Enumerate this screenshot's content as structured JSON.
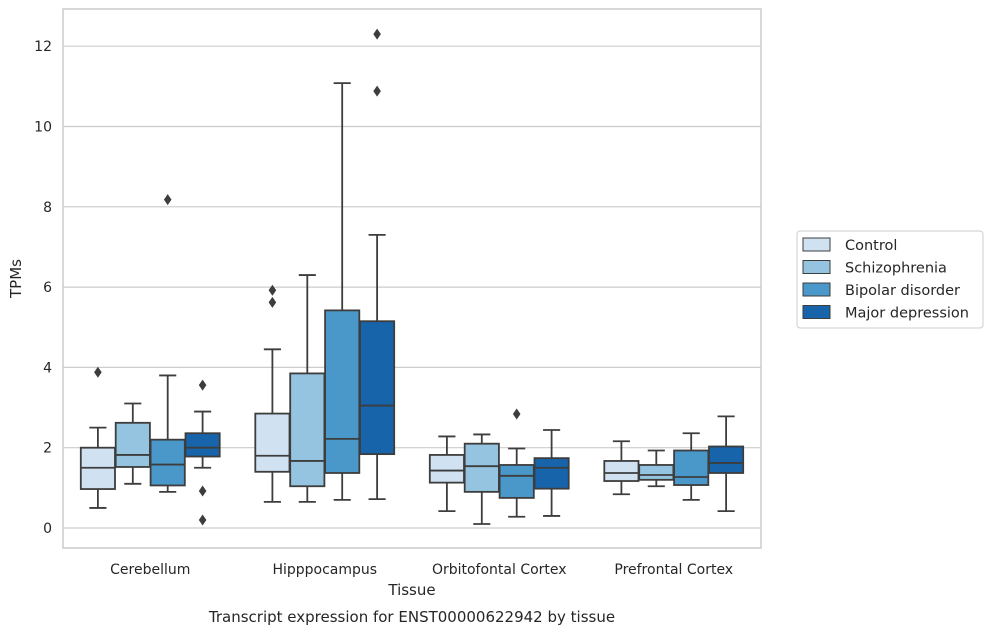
{
  "chart_data": {
    "type": "box",
    "title": "Transcript expression for ENST00000622942 by tissue",
    "xlabel": "Tissue",
    "ylabel": "TPMs",
    "ylim": [
      -0.5,
      12.9
    ],
    "yticks": [
      0,
      2,
      4,
      6,
      8,
      10,
      12
    ],
    "categories": [
      "Cerebellum",
      "Hipppocampus",
      "Orbitofontal Cortex",
      "Prefrontal Cortex"
    ],
    "grid": "horizontal",
    "legend_position": "right",
    "series": [
      {
        "name": "Control",
        "color": "#d0e1f2",
        "boxes": [
          {
            "whislo": 0.5,
            "q1": 0.97,
            "med": 1.5,
            "q3": 2.0,
            "whishi": 2.5,
            "fliers": [
              3.88
            ]
          },
          {
            "whislo": 0.65,
            "q1": 1.4,
            "med": 1.8,
            "q3": 2.85,
            "whishi": 4.45,
            "fliers": [
              5.62,
              5.92
            ]
          },
          {
            "whislo": 0.42,
            "q1": 1.13,
            "med": 1.43,
            "q3": 1.82,
            "whishi": 2.28,
            "fliers": []
          },
          {
            "whislo": 0.84,
            "q1": 1.17,
            "med": 1.37,
            "q3": 1.67,
            "whishi": 2.16,
            "fliers": []
          }
        ]
      },
      {
        "name": "Schizophrenia",
        "color": "#94c4df",
        "boxes": [
          {
            "whislo": 1.1,
            "q1": 1.52,
            "med": 1.82,
            "q3": 2.62,
            "whishi": 3.1,
            "fliers": []
          },
          {
            "whislo": 0.65,
            "q1": 1.04,
            "med": 1.67,
            "q3": 3.85,
            "whishi": 6.3,
            "fliers": []
          },
          {
            "whislo": 0.1,
            "q1": 0.9,
            "med": 1.54,
            "q3": 2.1,
            "whishi": 2.33,
            "fliers": []
          },
          {
            "whislo": 1.04,
            "q1": 1.2,
            "med": 1.32,
            "q3": 1.57,
            "whishi": 1.93,
            "fliers": []
          }
        ]
      },
      {
        "name": "Bipolar disorder",
        "color": "#4a98c9",
        "boxes": [
          {
            "whislo": 0.9,
            "q1": 1.06,
            "med": 1.58,
            "q3": 2.2,
            "whishi": 3.8,
            "fliers": [
              8.18
            ]
          },
          {
            "whislo": 0.7,
            "q1": 1.37,
            "med": 2.22,
            "q3": 5.42,
            "whishi": 11.08,
            "fliers": []
          },
          {
            "whislo": 0.28,
            "q1": 0.75,
            "med": 1.3,
            "q3": 1.57,
            "whishi": 1.98,
            "fliers": [
              2.84
            ]
          },
          {
            "whislo": 0.7,
            "q1": 1.07,
            "med": 1.27,
            "q3": 1.93,
            "whishi": 2.36,
            "fliers": []
          }
        ]
      },
      {
        "name": "Major depression",
        "color": "#1764ab",
        "boxes": [
          {
            "whislo": 1.5,
            "q1": 1.78,
            "med": 2.0,
            "q3": 2.36,
            "whishi": 2.9,
            "fliers": [
              3.56,
              0.92,
              0.2
            ]
          },
          {
            "whislo": 0.72,
            "q1": 1.84,
            "med": 3.05,
            "q3": 5.15,
            "whishi": 7.3,
            "fliers": [
              10.88,
              12.3
            ]
          },
          {
            "whislo": 0.3,
            "q1": 0.98,
            "med": 1.5,
            "q3": 1.74,
            "whishi": 2.44,
            "fliers": []
          },
          {
            "whislo": 0.42,
            "q1": 1.37,
            "med": 1.62,
            "q3": 2.03,
            "whishi": 2.78,
            "fliers": []
          }
        ]
      }
    ]
  }
}
